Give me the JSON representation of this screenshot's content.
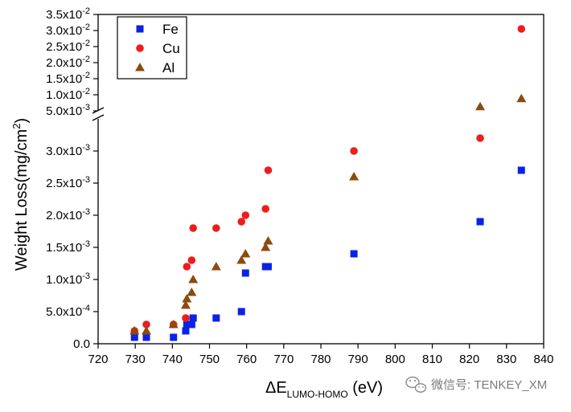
{
  "chart_data": {
    "type": "scatter",
    "title": "",
    "xlabel": {
      "main": "ΔE",
      "subscript": "LUMO-HOMO",
      "unit": " (eV)"
    },
    "ylabel": {
      "main": "Weight Loss(mg/cm",
      "superscript": "2",
      "close": ")"
    },
    "xlim": [
      720,
      840
    ],
    "x_ticks": [
      720,
      730,
      740,
      750,
      760,
      770,
      780,
      790,
      800,
      810,
      820,
      830,
      840
    ],
    "y_axis_break": true,
    "ylim_lower": [
      0,
      0.0035
    ],
    "ylim_upper": [
      0.005,
      0.035
    ],
    "y_ticks_lower": [
      {
        "value": 0,
        "label": "0.0"
      },
      {
        "value": 0.0005,
        "mant": "5.0x10",
        "exp": "-4"
      },
      {
        "value": 0.001,
        "mant": "1.0x10",
        "exp": "-3"
      },
      {
        "value": 0.0015,
        "mant": "1.5x10",
        "exp": "-3"
      },
      {
        "value": 0.002,
        "mant": "2.0x10",
        "exp": "-3"
      },
      {
        "value": 0.0025,
        "mant": "2.5x10",
        "exp": "-3"
      },
      {
        "value": 0.003,
        "mant": "3.0x10",
        "exp": "-3"
      }
    ],
    "y_ticks_upper": [
      {
        "value": 0.005,
        "mant": "5.0x10",
        "exp": "-3"
      },
      {
        "value": 0.01,
        "mant": "1.0x10",
        "exp": "-2"
      },
      {
        "value": 0.015,
        "mant": "1.5x10",
        "exp": "-2"
      },
      {
        "value": 0.02,
        "mant": "2.0x10",
        "exp": "-2"
      },
      {
        "value": 0.025,
        "mant": "2.5x10",
        "exp": "-2"
      },
      {
        "value": 0.03,
        "mant": "3.0x10",
        "exp": "-2"
      },
      {
        "value": 0.035,
        "mant": "3.5x10",
        "exp": "-2"
      }
    ],
    "legend_position": "top-left",
    "series": [
      {
        "name": "Fe",
        "marker": "square",
        "color": "#0a22e6",
        "points": [
          [
            729.8,
            0.0001
          ],
          [
            733.0,
            0.0001
          ],
          [
            740.3,
            0.0001
          ],
          [
            743.6,
            0.0002
          ],
          [
            743.9,
            0.0003
          ],
          [
            745.2,
            0.0003
          ],
          [
            745.6,
            0.0004
          ],
          [
            751.8,
            0.0004
          ],
          [
            758.6,
            0.0005
          ],
          [
            759.7,
            0.0011
          ],
          [
            765.1,
            0.0012
          ],
          [
            765.8,
            0.0012
          ],
          [
            788.9,
            0.0014
          ],
          [
            822.9,
            0.0019
          ],
          [
            834.0,
            0.0027
          ]
        ]
      },
      {
        "name": "Cu",
        "marker": "circle",
        "color": "#ee1c1c",
        "points": [
          [
            729.8,
            0.0002
          ],
          [
            733.0,
            0.0003
          ],
          [
            740.3,
            0.0003
          ],
          [
            743.6,
            0.0004
          ],
          [
            743.9,
            0.0012
          ],
          [
            745.2,
            0.0013
          ],
          [
            745.6,
            0.0018
          ],
          [
            751.8,
            0.0018
          ],
          [
            758.6,
            0.0019
          ],
          [
            759.7,
            0.002
          ],
          [
            765.1,
            0.0021
          ],
          [
            765.8,
            0.0027
          ],
          [
            788.9,
            0.003
          ],
          [
            822.9,
            0.0032
          ],
          [
            834.0,
            0.0305
          ]
        ]
      },
      {
        "name": "Al",
        "marker": "triangle",
        "color": "#8b4b0c",
        "points": [
          [
            729.8,
            0.0002
          ],
          [
            733.0,
            0.0002
          ],
          [
            740.3,
            0.0003
          ],
          [
            743.6,
            0.0006
          ],
          [
            743.9,
            0.0007
          ],
          [
            745.2,
            0.0008
          ],
          [
            745.6,
            0.001
          ],
          [
            751.8,
            0.0012
          ],
          [
            758.6,
            0.0013
          ],
          [
            759.7,
            0.0014
          ],
          [
            765.1,
            0.0015
          ],
          [
            765.8,
            0.0016
          ],
          [
            788.9,
            0.0026
          ],
          [
            822.9,
            0.0063
          ],
          [
            834.0,
            0.0088
          ]
        ]
      }
    ]
  },
  "watermark": {
    "icon": "wechat-icon",
    "text": "微信号: TENKEY_XM"
  }
}
